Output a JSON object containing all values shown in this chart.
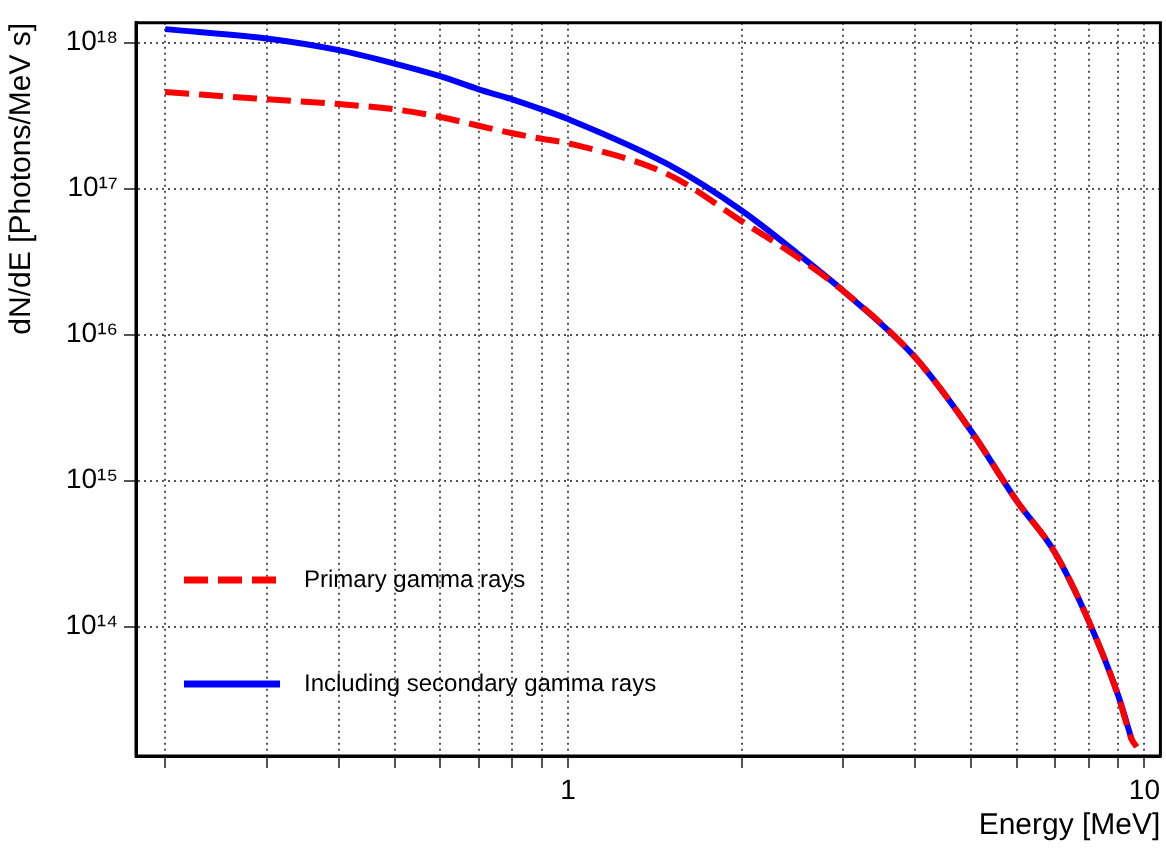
{
  "chart_data": {
    "type": "line",
    "xlabel": "Energy [MeV]",
    "ylabel": "dN/dE [Photons/MeV s]",
    "log": "xy",
    "grid": true,
    "legend": "bottom left",
    "marker": "none",
    "xlim": [
      0.178,
      10.66
    ],
    "ylim": [
      13000000000000.0,
      1.37e+18
    ],
    "xticks": [
      {
        "value": 0.2,
        "label": null
      },
      {
        "value": 0.3,
        "label": null
      },
      {
        "value": 0.4,
        "label": null
      },
      {
        "value": 0.5,
        "label": null
      },
      {
        "value": 0.6,
        "label": null
      },
      {
        "value": 0.7,
        "label": null
      },
      {
        "value": 0.8,
        "label": null
      },
      {
        "value": 0.9,
        "label": null
      },
      1,
      {
        "value": 2,
        "label": null
      },
      {
        "value": 3,
        "label": null
      },
      {
        "value": 4,
        "label": null
      },
      {
        "value": 5,
        "label": null
      },
      {
        "value": 6,
        "label": null
      },
      {
        "value": 7,
        "label": null
      },
      {
        "value": 8,
        "label": null
      },
      {
        "value": 9,
        "label": null
      },
      10
    ],
    "yticks": [
      {
        "value": 100000000000000.0,
        "label": "10¹⁴"
      },
      {
        "value": 1000000000000000.0,
        "label": "10¹⁵"
      },
      {
        "value": 1e+16,
        "label": "10¹⁶"
      },
      {
        "value": 1e+17,
        "label": "10¹⁷"
      },
      {
        "value": 1e+18,
        "label": "10¹⁸"
      }
    ],
    "x": [
      0.2,
      0.3,
      0.4,
      0.5,
      0.6,
      0.7,
      0.8,
      0.9,
      1,
      1.5,
      2,
      2.5,
      3,
      4,
      5,
      6,
      7,
      8,
      9,
      9.5,
      9.7
    ],
    "series": [
      {
        "name": "Primary gamma rays",
        "color": "#ff0000",
        "line_style": "dashed",
        "values": [
          4.6e+17,
          4.1e+17,
          3.8e+17,
          3.5e+17,
          3.1e+17,
          2.7e+17,
          2.4e+17,
          2.2e+17,
          2.05e+17,
          1.24e+17,
          6e+16,
          3.4e+16,
          2e+16,
          7000000000000000.0,
          2200000000000000.0,
          730000000000000.0,
          320000000000000.0,
          110000000000000.0,
          34000000000000.0,
          17000000000000.0,
          15000000000000.0
        ]
      },
      {
        "name": "Including secondary gamma rays",
        "color": "#0000ff",
        "line_style": "solid",
        "values": [
          1.24e+18,
          1.07e+18,
          8.9e+17,
          7.2e+17,
          5.9e+17,
          4.8e+17,
          4.1e+17,
          3.5e+17,
          3e+17,
          1.45e+17,
          7.1e+16,
          3.6e+16,
          2e+16,
          7000000000000000.0,
          2200000000000000.0,
          730000000000000.0,
          320000000000000.0,
          110000000000000.0,
          34000000000000.0,
          17000000000000.0,
          null
        ]
      }
    ]
  }
}
